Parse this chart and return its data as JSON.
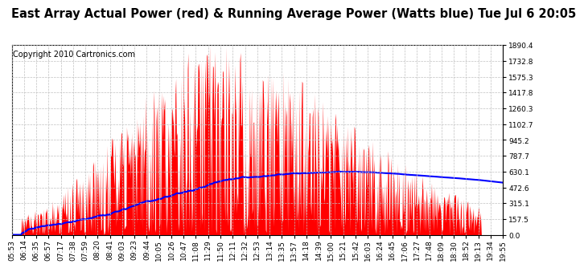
{
  "title": "East Array Actual Power (red) & Running Average Power (Watts blue) Tue Jul 6 20:05",
  "copyright": "Copyright 2010 Cartronics.com",
  "y_max": 1890.4,
  "y_ticks": [
    0.0,
    157.5,
    315.1,
    472.6,
    630.1,
    787.7,
    945.2,
    1102.7,
    1260.3,
    1417.8,
    1575.3,
    1732.8,
    1890.4
  ],
  "x_labels": [
    "05:53",
    "06:14",
    "06:35",
    "06:57",
    "07:17",
    "07:38",
    "07:59",
    "08:20",
    "08:41",
    "09:03",
    "09:23",
    "09:44",
    "10:05",
    "10:26",
    "10:47",
    "11:08",
    "11:29",
    "11:50",
    "12:11",
    "12:32",
    "12:53",
    "13:14",
    "13:35",
    "13:57",
    "14:18",
    "14:39",
    "15:00",
    "15:21",
    "15:42",
    "16:03",
    "16:24",
    "16:45",
    "17:06",
    "17:27",
    "17:48",
    "18:09",
    "18:30",
    "18:52",
    "19:13",
    "19:34",
    "19:55"
  ],
  "background_color": "#ffffff",
  "red_color": "#ff0000",
  "blue_color": "#0000ff",
  "grid_color": "#c0c0c0",
  "title_fontsize": 10.5,
  "copyright_fontsize": 7,
  "tick_fontsize": 6.5
}
